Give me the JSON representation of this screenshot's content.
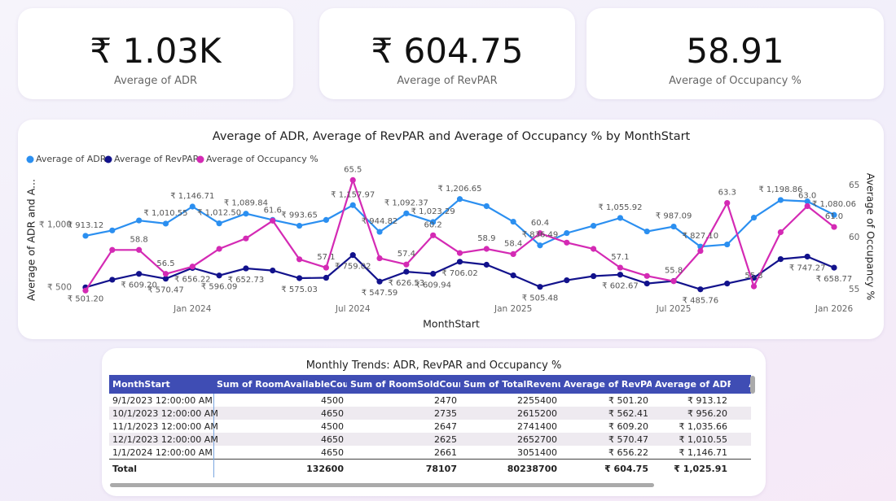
{
  "cards": [
    {
      "value": "₹ 1.03K",
      "label": "Average of ADR"
    },
    {
      "value": "₹ 604.75",
      "label": "Average of RevPAR"
    },
    {
      "value": "58.91",
      "label": "Average of Occupancy %"
    }
  ],
  "chart_data": {
    "type": "line",
    "title": "Average of ADR, Average of RevPAR and Average of Occupancy % by MonthStart",
    "x_label": "MonthStart",
    "y_label": "Average of ADR and A...",
    "y2_label": "Average of Occupancy %",
    "categories": [
      null,
      null,
      null,
      null,
      "Jan 2024",
      null,
      null,
      null,
      null,
      null,
      "Jul 2024",
      null,
      null,
      null,
      null,
      null,
      "Jan 2025",
      null,
      null,
      null,
      null,
      null,
      "Jul 2025",
      null,
      null,
      null,
      null,
      null,
      "Jan 2026"
    ],
    "ylim": [
      380,
      1400
    ],
    "yticks": [
      {
        "value": 500,
        "label": "₹ 500"
      },
      {
        "value": 1000,
        "label": "₹ 1,000"
      }
    ],
    "y2lim": [
      53.75,
      66
    ],
    "y2ticks": [
      55,
      60,
      65
    ],
    "grid": false,
    "legend": "top-left",
    "series": [
      {
        "name": "Average of ADR",
        "color": "#2b8ff0",
        "values": [
          913.12,
          956.2,
          1035.66,
          1010.55,
          1146.71,
          1012.5,
          1089.84,
          1040,
          993.65,
          1040,
          1157.97,
          944.82,
          1092.37,
          1023.29,
          1206.65,
          1150,
          1026,
          836.49,
          935,
          993,
          1055.92,
          948,
          987.09,
          827.1,
          844,
          1058,
          1198.86,
          1188,
          1080.06
        ],
        "value_labels": [
          "₹ 913.12",
          null,
          null,
          "₹ 1,010.55",
          "₹ 1,146.71",
          "₹ 1,012.50",
          "₹ 1,089.84",
          null,
          "₹ 993.65",
          null,
          "₹ 1,157.97",
          "₹ 944.82",
          "₹ 1,092.37",
          "₹ 1,023.29",
          "₹ 1,206.65",
          null,
          null,
          "₹ 836.49",
          null,
          null,
          "₹ 1,055.92",
          null,
          "₹ 987.09",
          "₹ 827.10",
          null,
          null,
          "₹ 1,198.86",
          null,
          "₹ 1,080.06"
        ]
      },
      {
        "name": "Average of RevPAR",
        "color": "#12128c",
        "values": [
          501.2,
          562.41,
          609.2,
          570.47,
          656.22,
          596.09,
          652.73,
          636,
          575.03,
          578,
          759.02,
          547.59,
          626.53,
          609.94,
          706.02,
          682,
          597,
          505.48,
          558,
          591,
          602.67,
          532,
          552,
          485.76,
          532,
          578,
          727,
          747.27,
          658.77
        ],
        "value_labels": [
          "₹ 501.20",
          null,
          "₹ 609.20",
          "₹ 570.47",
          "₹ 656.22",
          "₹ 596.09",
          "₹ 652.73",
          null,
          "₹ 575.03",
          null,
          "₹ 759.02",
          "₹ 547.59",
          "₹ 626.53",
          "₹ 609.94",
          "₹ 706.02",
          null,
          null,
          "₹ 505.48",
          null,
          null,
          "₹ 602.67",
          null,
          null,
          "₹ 485.76",
          null,
          null,
          null,
          "₹ 747.27",
          "₹ 658.77"
        ]
      },
      {
        "name": "Average of Occupancy %",
        "color": "#d42ab4",
        "axis": "y2",
        "values": [
          54.9,
          58.8,
          58.8,
          56.5,
          57.2,
          58.9,
          59.9,
          61.6,
          57.9,
          57.1,
          65.5,
          58.0,
          57.4,
          60.2,
          58.5,
          58.9,
          58.4,
          60.4,
          59.5,
          58.9,
          57.1,
          56.3,
          55.8,
          58.7,
          63.3,
          55.3,
          60.5,
          63.0,
          61.0
        ],
        "value_labels": [
          null,
          null,
          "58.8",
          "56.5",
          null,
          null,
          null,
          "61.6",
          null,
          "57.1",
          "65.5",
          null,
          "57.4",
          "60.2",
          null,
          "58.9",
          "58.4",
          "60.4",
          null,
          null,
          "57.1",
          null,
          "55.8",
          null,
          "63.3",
          "55.3",
          null,
          "63.0",
          "61.0"
        ]
      }
    ]
  },
  "table": {
    "title": "Monthly Trends: ADR, RevPAR and Occupancy %",
    "columns": [
      "MonthStart",
      "Sum of RoomAvailableCount",
      "Sum of RoomSoldCount",
      "Sum of TotalRevenue",
      "Average of RevPAR",
      "Average of ADR",
      "Ave"
    ],
    "rows": [
      [
        "9/1/2023 12:00:00 AM",
        "4500",
        "2470",
        "2255400",
        "₹ 501.20",
        "₹ 913.12"
      ],
      [
        "10/1/2023 12:00:00 AM",
        "4650",
        "2735",
        "2615200",
        "₹ 562.41",
        "₹ 956.20"
      ],
      [
        "11/1/2023 12:00:00 AM",
        "4500",
        "2647",
        "2741400",
        "₹ 609.20",
        "₹ 1,035.66"
      ],
      [
        "12/1/2023 12:00:00 AM",
        "4650",
        "2625",
        "2652700",
        "₹ 570.47",
        "₹ 1,010.55"
      ],
      [
        "1/1/2024 12:00:00 AM",
        "4650",
        "2661",
        "3051400",
        "₹ 656.22",
        "₹ 1,146.71"
      ]
    ],
    "total": [
      "Total",
      "132600",
      "78107",
      "80238700",
      "₹ 604.75",
      "₹ 1,025.91"
    ]
  }
}
